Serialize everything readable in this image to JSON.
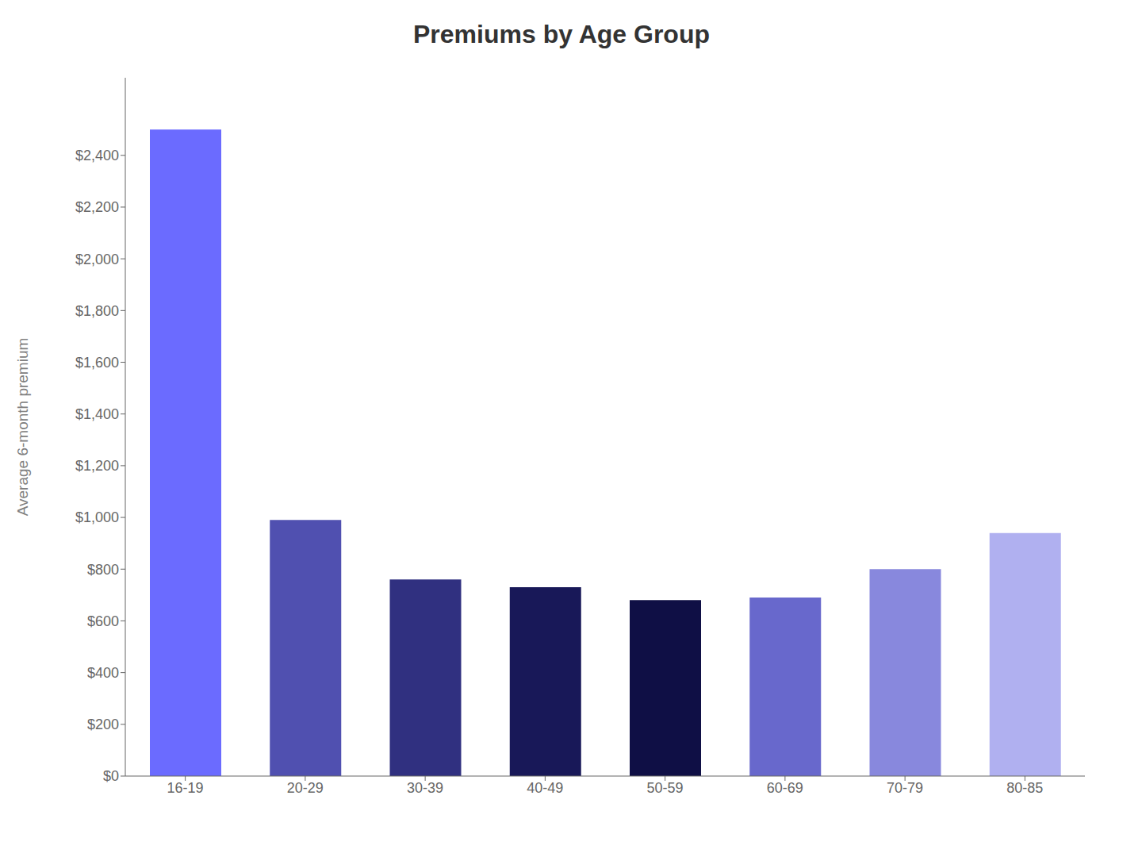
{
  "chart_data": {
    "type": "bar",
    "title": "Premiums by Age Group",
    "ylabel": "Average 6-month premium",
    "categories": [
      "16-19",
      "20-29",
      "30-39",
      "40-49",
      "50-59",
      "60-69",
      "70-79",
      "80-85"
    ],
    "values": [
      2500,
      990,
      760,
      730,
      680,
      690,
      800,
      940
    ],
    "colors": [
      "#6b6bff",
      "#5050b0",
      "#303080",
      "#181858",
      "#0f0f45",
      "#6868cc",
      "#8888dd",
      "#b0b0f0"
    ],
    "ylim": [
      0,
      2700
    ],
    "yticks": [
      {
        "value": 0,
        "label": "$0"
      },
      {
        "value": 200,
        "label": "$200"
      },
      {
        "value": 400,
        "label": "$400"
      },
      {
        "value": 600,
        "label": "$600"
      },
      {
        "value": 800,
        "label": "$800"
      },
      {
        "value": 1000,
        "label": "$1,000"
      },
      {
        "value": 1200,
        "label": "$1,200"
      },
      {
        "value": 1400,
        "label": "$1,400"
      },
      {
        "value": 1600,
        "label": "$1,600"
      },
      {
        "value": 1800,
        "label": "$1,800"
      },
      {
        "value": 2000,
        "label": "$2,000"
      },
      {
        "value": 2200,
        "label": "$2,200"
      },
      {
        "value": 2400,
        "label": "$2,400"
      }
    ],
    "grid": false
  }
}
